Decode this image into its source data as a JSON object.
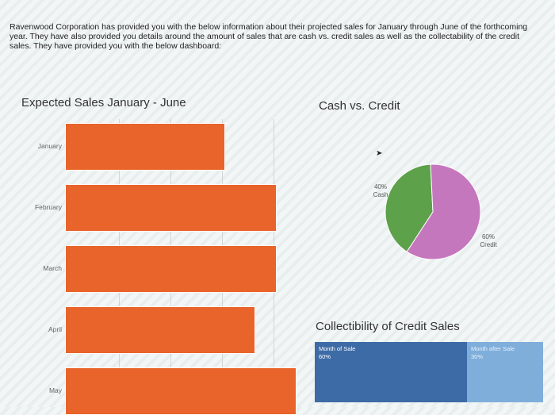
{
  "intro_text": "Ravenwood Corporation has provided you with the below information about their projected sales for January through June of the forthcoming year. They have also provided you details around the amount of sales that are cash vs. credit sales as well as the collectability of the credit sales. They have provided you with the below dashboard:",
  "chart_data": [
    {
      "type": "bar",
      "orientation": "horizontal",
      "title": "Expected Sales January - June",
      "categories": [
        "January",
        "February",
        "March",
        "April",
        "May"
      ],
      "values": [
        200,
        265,
        265,
        238,
        290
      ],
      "color": "#e8642a",
      "xlim": [
        0,
        300
      ],
      "grid": true
    },
    {
      "type": "pie",
      "title": "Cash vs. Credit",
      "slices": [
        {
          "label": "Cash",
          "value": 40,
          "text": "40%",
          "color": "#5da14a"
        },
        {
          "label": "Credit",
          "value": 60,
          "text": "60%",
          "color": "#c577be"
        }
      ]
    },
    {
      "type": "treemap",
      "title": "Collectibility of Credit Sales",
      "blocks": [
        {
          "label": "Month of Sale",
          "value": 60,
          "text": "60%",
          "color": "#3d6ba6"
        },
        {
          "label": "Month after Sale",
          "value": 30,
          "text": "30%",
          "color": "#7faedb"
        }
      ]
    }
  ]
}
